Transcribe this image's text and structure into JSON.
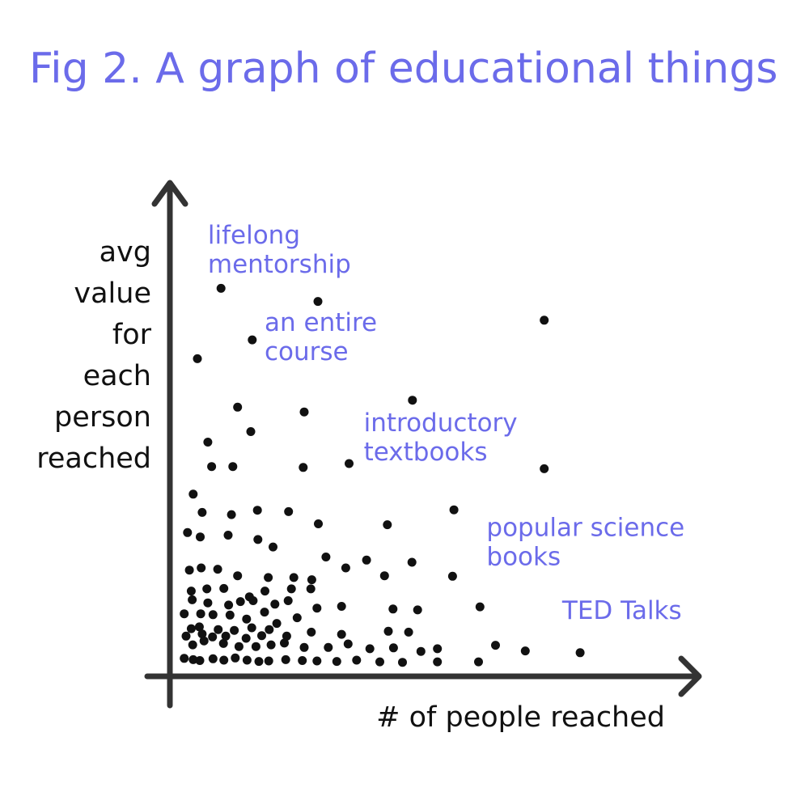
{
  "chart_data": {
    "type": "scatter",
    "title": "Fig 2. A graph of educational things",
    "xlabel": "# of people reached",
    "ylabel_lines": [
      "avg",
      "value",
      "for",
      "each",
      "person",
      "reached"
    ],
    "xlim": [
      0,
      100
    ],
    "ylim": [
      0,
      100
    ],
    "grid": false,
    "axis_ticks": false,
    "annotations": [
      {
        "id": "lifelong-mentorship",
        "lines": [
          "lifelong",
          "mentorship"
        ],
        "x": 7,
        "y": 98
      },
      {
        "id": "an-entire-course",
        "lines": [
          "an entire",
          "course"
        ],
        "x": 19,
        "y": 78
      },
      {
        "id": "introductory-textbooks",
        "lines": [
          "introductory",
          "textbooks"
        ],
        "x": 40,
        "y": 55
      },
      {
        "id": "popular-science-books",
        "lines": [
          "popular science",
          "books"
        ],
        "x": 66,
        "y": 31
      },
      {
        "id": "ted-talks",
        "lines": [
          "TED Talks"
        ],
        "x": 82,
        "y": 12
      }
    ],
    "points": [
      [
        9.8,
        87.7
      ],
      [
        30.3,
        84.7
      ],
      [
        78.2,
        80.4
      ],
      [
        16.4,
        75.9
      ],
      [
        4.8,
        71.6
      ],
      [
        50.3,
        62.1
      ],
      [
        13.3,
        60.5
      ],
      [
        27.4,
        59.4
      ],
      [
        16.1,
        54.9
      ],
      [
        7.0,
        52.5
      ],
      [
        36.9,
        47.6
      ],
      [
        27.2,
        46.7
      ],
      [
        7.8,
        46.9
      ],
      [
        12.3,
        46.9
      ],
      [
        78.2,
        46.4
      ],
      [
        3.9,
        40.6
      ],
      [
        5.8,
        36.4
      ],
      [
        12.0,
        35.9
      ],
      [
        17.5,
        36.9
      ],
      [
        24.1,
        36.6
      ],
      [
        59.1,
        37.0
      ],
      [
        30.4,
        33.8
      ],
      [
        45.0,
        33.6
      ],
      [
        2.7,
        31.8
      ],
      [
        5.4,
        30.8
      ],
      [
        11.3,
        31.2
      ],
      [
        17.6,
        30.2
      ],
      [
        20.8,
        28.5
      ],
      [
        32.0,
        26.2
      ],
      [
        40.6,
        25.5
      ],
      [
        50.2,
        25.0
      ],
      [
        3.1,
        23.2
      ],
      [
        5.6,
        23.7
      ],
      [
        9.1,
        23.4
      ],
      [
        13.3,
        21.9
      ],
      [
        19.8,
        21.5
      ],
      [
        25.2,
        21.5
      ],
      [
        29.0,
        21.0
      ],
      [
        36.2,
        23.7
      ],
      [
        44.4,
        21.9
      ],
      [
        58.8,
        21.8
      ],
      [
        3.5,
        18.4
      ],
      [
        6.8,
        18.9
      ],
      [
        10.4,
        19.0
      ],
      [
        15.8,
        17.1
      ],
      [
        19.1,
        18.4
      ],
      [
        24.7,
        18.9
      ],
      [
        28.8,
        18.9
      ],
      [
        3.7,
        16.4
      ],
      [
        7.0,
        15.7
      ],
      [
        11.4,
        15.2
      ],
      [
        13.9,
        16.0
      ],
      [
        16.6,
        16.2
      ],
      [
        21.2,
        15.4
      ],
      [
        24.0,
        16.2
      ],
      [
        30.1,
        14.5
      ],
      [
        35.3,
        14.9
      ],
      [
        46.2,
        14.3
      ],
      [
        51.4,
        14.1
      ],
      [
        64.6,
        14.8
      ],
      [
        2.0,
        13.2
      ],
      [
        5.5,
        13.2
      ],
      [
        8.1,
        13.0
      ],
      [
        11.7,
        12.9
      ],
      [
        15.2,
        12.0
      ],
      [
        19.0,
        13.6
      ],
      [
        21.6,
        11.0
      ],
      [
        25.9,
        12.3
      ],
      [
        3.5,
        9.8
      ],
      [
        5.2,
        10.2
      ],
      [
        9.2,
        9.6
      ],
      [
        12.6,
        9.4
      ],
      [
        16.3,
        10.0
      ],
      [
        20.0,
        9.6
      ],
      [
        2.4,
        8.1
      ],
      [
        5.8,
        8.6
      ],
      [
        8.0,
        7.9
      ],
      [
        10.8,
        8.1
      ],
      [
        15.1,
        7.6
      ],
      [
        18.4,
        8.2
      ],
      [
        23.7,
        8.1
      ],
      [
        28.9,
        9.0
      ],
      [
        35.3,
        8.5
      ],
      [
        45.2,
        9.2
      ],
      [
        49.5,
        9.0
      ],
      [
        3.8,
        6.1
      ],
      [
        6.2,
        7.0
      ],
      [
        10.3,
        6.4
      ],
      [
        13.6,
        5.7
      ],
      [
        17.2,
        5.7
      ],
      [
        20.4,
        6.1
      ],
      [
        23.2,
        6.5
      ],
      [
        27.4,
        5.5
      ],
      [
        32.5,
        5.5
      ],
      [
        36.7,
        6.3
      ],
      [
        41.3,
        5.2
      ],
      [
        46.3,
        5.4
      ],
      [
        52.1,
        4.6
      ],
      [
        55.6,
        5.2
      ],
      [
        67.9,
        6.0
      ],
      [
        74.2,
        4.7
      ],
      [
        85.8,
        4.3
      ],
      [
        2.0,
        3.0
      ],
      [
        3.9,
        2.7
      ],
      [
        5.3,
        2.5
      ],
      [
        8.1,
        2.9
      ],
      [
        10.4,
        2.6
      ],
      [
        12.8,
        3.1
      ],
      [
        15.3,
        2.6
      ],
      [
        17.8,
        2.3
      ],
      [
        19.9,
        2.4
      ],
      [
        23.5,
        2.7
      ],
      [
        27.0,
        2.5
      ],
      [
        30.1,
        2.4
      ],
      [
        34.3,
        2.3
      ],
      [
        38.5,
        2.6
      ],
      [
        43.4,
        2.2
      ],
      [
        48.2,
        2.1
      ],
      [
        55.6,
        2.2
      ],
      [
        64.3,
        2.2
      ]
    ]
  }
}
